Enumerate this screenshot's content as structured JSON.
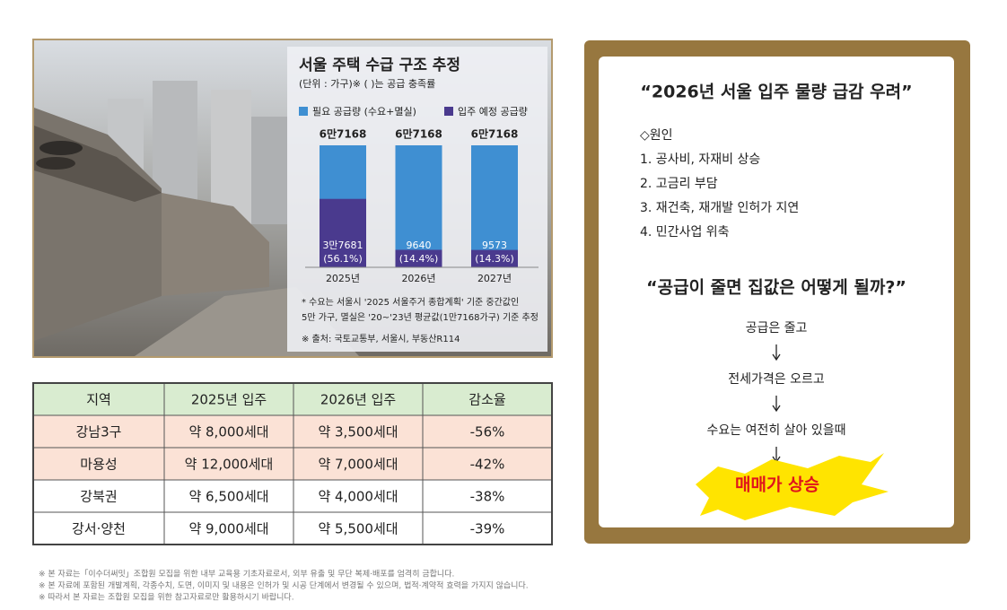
{
  "chart_data": {
    "type": "bar",
    "title": "서울 주택 수급 구조 추정",
    "subtitle": "(단위 : 가구)※ ( )는 공급 충족률",
    "categories": [
      "2025년",
      "2026년",
      "2027년"
    ],
    "series": [
      {
        "name": "필요 공급량 (수요+멸실)",
        "color": "#3f8fd2",
        "values": [
          67168,
          67168,
          67168
        ],
        "value_labels": [
          "6만7168",
          "6만7168",
          "6만7168"
        ]
      },
      {
        "name": "입주 예정 공급량",
        "color": "#4a3a8e",
        "values": [
          37681,
          9640,
          9573
        ],
        "value_labels": [
          "3만7681",
          "9640",
          "9573"
        ],
        "ratio_labels": [
          "(56.1%)",
          "(14.4%)",
          "(14.3%)"
        ]
      }
    ],
    "notes": [
      "* 수요는 서울시 '2025 서울주거 종합계획' 기준 중간값인",
      "5만 가구, 멸실은 '20~'23년 평균값(1만7168가구) 기준 추정"
    ],
    "source": "※ 출처: 국토교통부, 서울시, 부동산R114"
  },
  "table": {
    "header": [
      "지역",
      "2025년 입주",
      "2026년 입주",
      "감소율"
    ],
    "rows": [
      [
        "강남3구",
        "약 8,000세대",
        "약 3,500세대",
        "-56%"
      ],
      [
        "마용성",
        "약 12,000세대",
        "약 7,000세대",
        "-42%"
      ],
      [
        "강북권",
        "약 6,500세대",
        "약 4,000세대",
        "-38%"
      ],
      [
        "강서·양천",
        "약 9,000세대",
        "약 5,500세대",
        "-39%"
      ]
    ]
  },
  "panel": {
    "headline": "“2026년 서울 입주 물량 급감 우려”",
    "cause_title": "◇원인",
    "causes": [
      "1. 공사비, 자재비 상승",
      "2. 고금리 부담",
      "3. 재건축, 재개발 인허가 지연",
      "4. 민간사업 위축"
    ],
    "question": "“공급이 줄면 집값은 어떻게 될까?”",
    "flow": [
      "공급은 줄고",
      "전세가격은 오르고",
      "수요는 여전히 살아 있을때"
    ],
    "result": "매매가 상승"
  },
  "footnotes": [
    "※ 본 자료는「이수더써밋」조합원 모집을 위한 내부 교육용 기초자료로서, 외부 유출 및 무단 복제·배포를 엄격히 금합니다.",
    "※ 본 자료에 포함된 개발계획, 각종수치, 도면, 이미지 및 내용은 인허가 및 시공 단계에서 변경될 수 있으며, 법적·계약적 효력을 가지지 않습니다.",
    "※ 따라서 본 자료는 조합원 모집을 위한 참고자료로만 활용하시기 바랍니다."
  ]
}
